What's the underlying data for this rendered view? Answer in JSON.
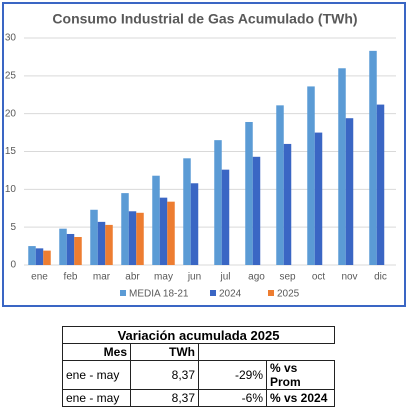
{
  "chart_data": {
    "type": "bar",
    "title": "Consumo Industrial de Gas Acumulado (TWh)",
    "categories": [
      "ene",
      "feb",
      "mar",
      "abr",
      "may",
      "jun",
      "jul",
      "ago",
      "sep",
      "oct",
      "nov",
      "dic"
    ],
    "series": [
      {
        "name": "MEDIA 18-21",
        "color": "#5b9bd5",
        "values": [
          2.5,
          4.8,
          7.3,
          9.5,
          11.8,
          14.1,
          16.5,
          18.9,
          21.1,
          23.6,
          26.0,
          28.3
        ]
      },
      {
        "name": "2024",
        "color": "#3a66c4",
        "values": [
          2.2,
          4.1,
          5.7,
          7.1,
          8.9,
          10.8,
          12.6,
          14.3,
          16.0,
          17.5,
          19.4,
          21.2
        ]
      },
      {
        "name": "2025",
        "color": "#ed7d31",
        "values": [
          1.9,
          3.7,
          5.3,
          6.9,
          8.37,
          null,
          null,
          null,
          null,
          null,
          null,
          null
        ]
      }
    ],
    "ylim": [
      0,
      30
    ],
    "yticks": [
      0,
      5,
      10,
      15,
      20,
      25,
      30
    ],
    "grid": true,
    "legend": "bottom"
  },
  "table": {
    "title": "Variación acumulada 2025",
    "columns": [
      "Mes",
      "TWh"
    ],
    "rows": [
      [
        "ene - may",
        "8,37",
        "-29%",
        "% vs Prom"
      ],
      [
        "ene - may",
        "8,37",
        "-6%",
        "% vs 2024"
      ]
    ]
  }
}
